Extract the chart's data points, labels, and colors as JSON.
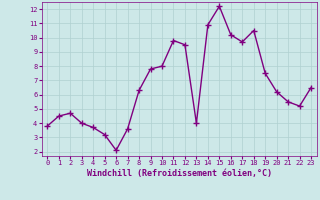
{
  "x": [
    0,
    1,
    2,
    3,
    4,
    5,
    6,
    7,
    8,
    9,
    10,
    11,
    12,
    13,
    14,
    15,
    16,
    17,
    18,
    19,
    20,
    21,
    22,
    23
  ],
  "y": [
    3.8,
    4.5,
    4.7,
    4.0,
    3.7,
    3.2,
    2.1,
    3.6,
    6.3,
    7.8,
    8.0,
    9.8,
    9.5,
    4.0,
    10.9,
    12.2,
    10.2,
    9.7,
    10.5,
    7.5,
    6.2,
    5.5,
    5.2,
    6.5
  ],
  "line_color": "#800080",
  "marker": "+",
  "marker_size": 4,
  "linewidth": 1.0,
  "bg_color": "#cde8e8",
  "grid_color": "#b0d0d0",
  "xlabel": "Windchill (Refroidissement éolien,°C)",
  "xlabel_color": "#800080",
  "tick_color": "#800080",
  "ylabel_ticks": [
    2,
    3,
    4,
    5,
    6,
    7,
    8,
    9,
    10,
    11,
    12
  ],
  "xlim": [
    -0.5,
    23.5
  ],
  "ylim": [
    1.7,
    12.5
  ]
}
